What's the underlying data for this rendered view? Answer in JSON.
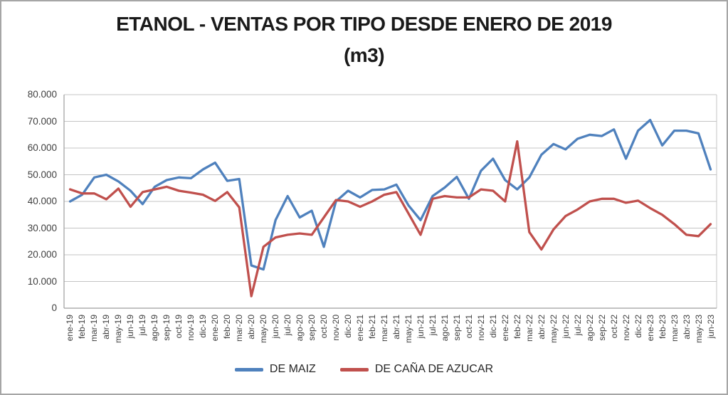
{
  "title": {
    "line1": "ETANOL - VENTAS POR TIPO DESDE ENERO DE 2019",
    "line2": "(m3)"
  },
  "axes": {
    "y_tick_labels": [
      "0",
      "10.000",
      "20.000",
      "30.000",
      "40.000",
      "50.000",
      "60.000",
      "70.000",
      "80.000"
    ]
  },
  "chart_data": {
    "type": "line",
    "title": "ETANOL - VENTAS POR TIPO DESDE ENERO DE 2019 (m3)",
    "xlabel": "",
    "ylabel": "",
    "ylim": [
      0,
      80000
    ],
    "y_step": 10000,
    "grid": true,
    "legend_position": "bottom",
    "categories": [
      "ene-19",
      "feb-19",
      "mar-19",
      "abr-19",
      "may-19",
      "jun-19",
      "jul-19",
      "ago-19",
      "sep-19",
      "oct-19",
      "nov-19",
      "dic-19",
      "ene-20",
      "feb-20",
      "mar-20",
      "abr-20",
      "may-20",
      "jun-20",
      "jul-20",
      "ago-20",
      "sep-20",
      "oct-20",
      "nov-20",
      "dic-20",
      "ene-21",
      "feb-21",
      "mar-21",
      "abr-21",
      "may-21",
      "jun-21",
      "jul-21",
      "ago-21",
      "sep-21",
      "oct-21",
      "nov-21",
      "dic-21",
      "ene-22",
      "feb-22",
      "mar-22",
      "abr-22",
      "may-22",
      "jun-22",
      "jul-22",
      "ago-22",
      "sep-22",
      "oct-22",
      "nov-22",
      "dic-22",
      "ene-23",
      "feb-23",
      "mar-23",
      "abr-23",
      "may-23",
      "jun-23"
    ],
    "series": [
      {
        "name": "DE MAIZ",
        "color": "#4F81BD",
        "values": [
          40000,
          42500,
          49000,
          50000,
          47500,
          44000,
          39000,
          45500,
          48000,
          49000,
          48700,
          52000,
          54500,
          47700,
          48400,
          16000,
          14500,
          33000,
          42000,
          34000,
          36500,
          23000,
          40000,
          44000,
          41500,
          44300,
          44500,
          46300,
          38500,
          33000,
          42000,
          45200,
          49200,
          41000,
          51500,
          56000,
          48000,
          44500,
          49000,
          57500,
          61500,
          59500,
          63500,
          65000,
          64500,
          67000,
          56000,
          66500,
          70500,
          61000,
          66500,
          66500,
          65500,
          52000
        ]
      },
      {
        "name": "DE CAÑA DE AZUCAR",
        "color": "#C0504D",
        "values": [
          44500,
          43000,
          43000,
          40800,
          44800,
          38000,
          43500,
          44500,
          45500,
          44000,
          43300,
          42500,
          40200,
          43500,
          37800,
          4500,
          23000,
          26500,
          27500,
          28000,
          27500,
          34000,
          40500,
          40000,
          38000,
          40000,
          42500,
          43500,
          35500,
          27500,
          41000,
          42000,
          41500,
          41500,
          44500,
          44000,
          40000,
          62500,
          28500,
          22000,
          29500,
          34500,
          37000,
          40000,
          41000,
          41000,
          39500,
          40300,
          37500,
          35000,
          31500,
          27500,
          27000,
          31500
        ]
      }
    ]
  }
}
